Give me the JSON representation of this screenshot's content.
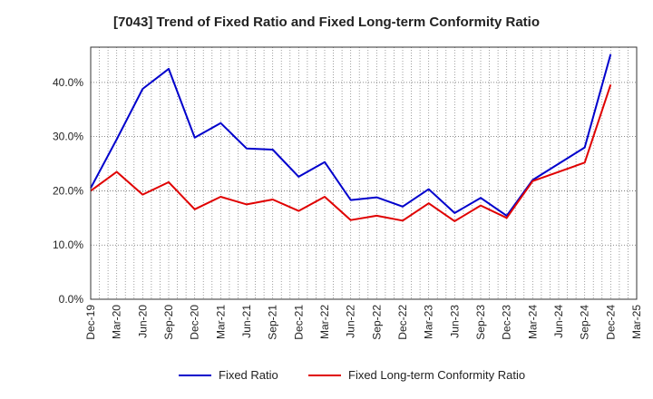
{
  "chart_data": {
    "type": "line",
    "title": "[7043]  Trend of Fixed Ratio and Fixed Long-term Conformity Ratio",
    "xlabel": "",
    "ylabel": "",
    "x_ticks": [
      "Dec-19",
      "Mar-20",
      "Jun-20",
      "Sep-20",
      "Dec-20",
      "Mar-21",
      "Jun-21",
      "Sep-21",
      "Dec-21",
      "Mar-22",
      "Jun-22",
      "Sep-22",
      "Dec-22",
      "Mar-23",
      "Jun-23",
      "Sep-23",
      "Dec-23",
      "Mar-24",
      "Jun-24",
      "Sep-24",
      "Dec-24",
      "Mar-25"
    ],
    "y_ticks": [
      "0.0%",
      "10.0%",
      "20.0%",
      "30.0%",
      "40.0%"
    ],
    "ylim": [
      0,
      46.5
    ],
    "y_unit": "%",
    "grid": true,
    "legend_position": "bottom",
    "series": [
      {
        "name": "Fixed Ratio",
        "color": "#0000cc",
        "x": [
          "Dec-19",
          "Mar-20",
          "Jun-20",
          "Sep-20",
          "Dec-20",
          "Mar-21",
          "Jun-21",
          "Sep-21",
          "Dec-21",
          "Mar-22",
          "Jun-22",
          "Sep-22",
          "Dec-22",
          "Mar-23",
          "Jun-23",
          "Sep-23",
          "Dec-23",
          "Mar-24",
          "Sep-24",
          "Dec-24"
        ],
        "values": [
          20.5,
          29.5,
          38.8,
          42.5,
          29.8,
          32.5,
          27.8,
          27.6,
          22.6,
          25.3,
          18.3,
          18.8,
          17.1,
          20.3,
          15.9,
          18.7,
          15.4,
          22.0,
          28.0,
          45.2
        ]
      },
      {
        "name": "Fixed Long-term Conformity Ratio",
        "color": "#e00000",
        "x": [
          "Dec-19",
          "Mar-20",
          "Jun-20",
          "Sep-20",
          "Dec-20",
          "Mar-21",
          "Jun-21",
          "Sep-21",
          "Dec-21",
          "Mar-22",
          "Jun-22",
          "Sep-22",
          "Dec-22",
          "Mar-23",
          "Jun-23",
          "Sep-23",
          "Dec-23",
          "Mar-24",
          "Sep-24",
          "Dec-24"
        ],
        "values": [
          20.0,
          23.5,
          19.3,
          21.6,
          16.6,
          18.9,
          17.5,
          18.4,
          16.3,
          18.9,
          14.6,
          15.4,
          14.5,
          17.7,
          14.4,
          17.3,
          15.0,
          21.8,
          25.2,
          39.6
        ]
      }
    ]
  }
}
